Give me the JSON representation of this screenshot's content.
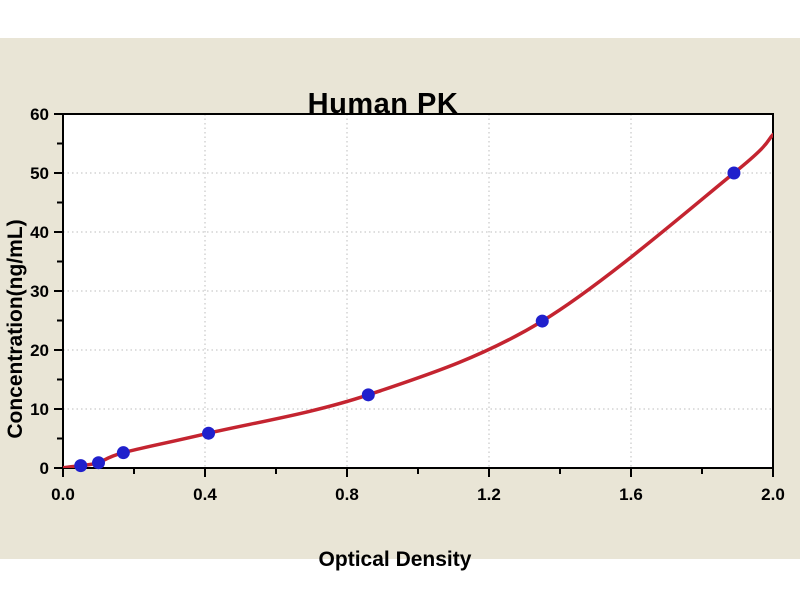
{
  "chart_data": {
    "type": "scatter",
    "title": "Human PK",
    "xlabel": "Optical Density",
    "ylabel": "Concentration(ng/mL)",
    "xlim": [
      0.0,
      2.0
    ],
    "ylim": [
      0,
      60
    ],
    "x_tick_values": [
      0.0,
      0.4,
      0.8,
      1.2,
      1.6,
      2.0
    ],
    "x_tick_labels": [
      "0.0",
      "0.4",
      "0.8",
      "1.2",
      "1.6",
      "2.0"
    ],
    "x_minor_ticks": [
      0.2,
      0.6,
      1.0,
      1.4,
      1.8
    ],
    "y_tick_values": [
      0,
      10,
      20,
      30,
      40,
      50,
      60
    ],
    "y_tick_labels": [
      "0",
      "10",
      "20",
      "30",
      "40",
      "50",
      "60"
    ],
    "y_minor_ticks": [
      5,
      15,
      25,
      35,
      45,
      55
    ],
    "grid": {
      "x_values": [
        0.4,
        0.8,
        1.2,
        1.6
      ],
      "y_values": [
        10,
        20,
        30,
        40,
        50
      ],
      "style": "dotted"
    },
    "points": [
      [
        0.05,
        0.4
      ],
      [
        0.1,
        0.9
      ],
      [
        0.17,
        2.6
      ],
      [
        0.41,
        5.9
      ],
      [
        0.86,
        12.4
      ],
      [
        1.35,
        24.9
      ],
      [
        1.89,
        50.0
      ]
    ],
    "fit_curve": [
      [
        0.0,
        0.05
      ],
      [
        0.05,
        0.4
      ],
      [
        0.1,
        0.9
      ],
      [
        0.17,
        2.6
      ],
      [
        0.41,
        5.9
      ],
      [
        0.86,
        12.4
      ],
      [
        1.35,
        24.9
      ],
      [
        1.89,
        50.0
      ],
      [
        2.0,
        56.5
      ]
    ],
    "legend": "none",
    "colors": {
      "background": "#e9e5d6",
      "plot_background": "#ffffff",
      "curve": "#c42430",
      "points": "#2020cc",
      "grid": "#bdbdbd",
      "axis": "#000000",
      "text": "#000000"
    }
  }
}
